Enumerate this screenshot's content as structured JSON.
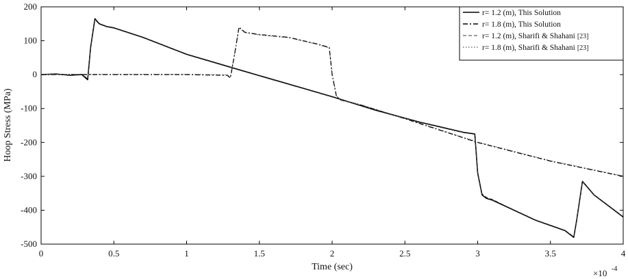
{
  "chart_data": {
    "type": "line",
    "xlabel": "Time (sec)",
    "ylabel": "Hoop Stress (MPa)",
    "xlim": [
      0,
      4
    ],
    "ylim": [
      -500,
      200
    ],
    "x_multiplier": "×10",
    "x_multiplier_exp": "-4",
    "x_ticks": [
      0,
      0.5,
      1,
      1.5,
      2,
      2.5,
      3,
      3.5,
      4
    ],
    "x_tick_labels": [
      "0",
      "0.5",
      "1",
      "1.5",
      "2",
      "2.5",
      "3",
      "3.5",
      "4"
    ],
    "y_ticks": [
      200,
      100,
      0,
      -100,
      -200,
      -300,
      -400,
      -500
    ],
    "y_tick_labels": [
      "200",
      "100",
      "0",
      "-100",
      "-200",
      "-300",
      "-400",
      "-500"
    ],
    "grid": false,
    "legend_position": "top-right",
    "series": [
      {
        "name": "r= 1.2 (m), This Solution",
        "style": "solid",
        "color": "#000000",
        "x": [
          0,
          0.1,
          0.2,
          0.28,
          0.32,
          0.34,
          0.37,
          0.4,
          0.45,
          0.5,
          0.7,
          1.0,
          1.3,
          1.5,
          1.8,
          2.0,
          2.3,
          2.6,
          2.9,
          2.98,
          3.0,
          3.03,
          3.06,
          3.1,
          3.2,
          3.4,
          3.6,
          3.66,
          3.68,
          3.72,
          3.75,
          3.8,
          4.0
        ],
        "y": [
          0,
          2,
          -2,
          0,
          -15,
          80,
          165,
          150,
          142,
          138,
          110,
          60,
          22,
          -3,
          -40,
          -65,
          -105,
          -140,
          -170,
          -175,
          -290,
          -355,
          -365,
          -370,
          -390,
          -430,
          -460,
          -480,
          -430,
          -315,
          -330,
          -355,
          -420
        ]
      },
      {
        "name": "r= 1.8 (m), This Solution",
        "style": "dashdot",
        "color": "#000000",
        "x": [
          0,
          0.5,
          1.0,
          1.28,
          1.3,
          1.33,
          1.36,
          1.4,
          1.5,
          1.7,
          1.9,
          1.98,
          2.0,
          2.03,
          2.06,
          2.2,
          2.5,
          3.0,
          3.5,
          4.0
        ],
        "y": [
          0,
          0,
          0,
          -2,
          -10,
          60,
          140,
          125,
          118,
          110,
          90,
          80,
          0,
          -65,
          -75,
          -90,
          -130,
          -200,
          -255,
          -300
        ]
      },
      {
        "name": "r= 1.2 (m), Sharifi & Shahani",
        "style": "dashed",
        "color": "#333333",
        "x": [
          0,
          0.1,
          0.2,
          0.28,
          0.32,
          0.34,
          0.37,
          0.4,
          0.45,
          0.5,
          0.7,
          1.0,
          1.3,
          1.5,
          1.8,
          2.0,
          2.3,
          2.6,
          2.9,
          2.98,
          3.0,
          3.03,
          3.06,
          3.1,
          3.2,
          3.4,
          3.6,
          3.66,
          3.68,
          3.72,
          3.75,
          3.8,
          4.0
        ],
        "y": [
          1,
          1,
          -1,
          1,
          -12,
          78,
          162,
          149,
          141,
          137,
          109,
          59,
          21,
          -4,
          -41,
          -66,
          -106,
          -141,
          -171,
          -176,
          -288,
          -352,
          -362,
          -368,
          -389,
          -429,
          -459,
          -478,
          -428,
          -316,
          -331,
          -356,
          -421
        ]
      },
      {
        "name": "r= 1.8 (m), Sharifi & Shahani",
        "style": "dotted",
        "color": "#555555",
        "x": [
          0,
          0.5,
          1.0,
          1.28,
          1.3,
          1.33,
          1.36,
          1.4,
          1.5,
          1.7,
          1.9,
          1.98,
          2.0,
          2.03,
          2.06,
          2.2,
          2.5,
          3.0,
          3.5,
          4.0
        ],
        "y": [
          1,
          1,
          1,
          -1,
          -8,
          62,
          138,
          124,
          117,
          109,
          89,
          79,
          2,
          -63,
          -74,
          -89,
          -129,
          -199,
          -254,
          -299
        ]
      }
    ],
    "legend_refs": [
      "",
      "",
      "[23]",
      "[23]"
    ]
  }
}
